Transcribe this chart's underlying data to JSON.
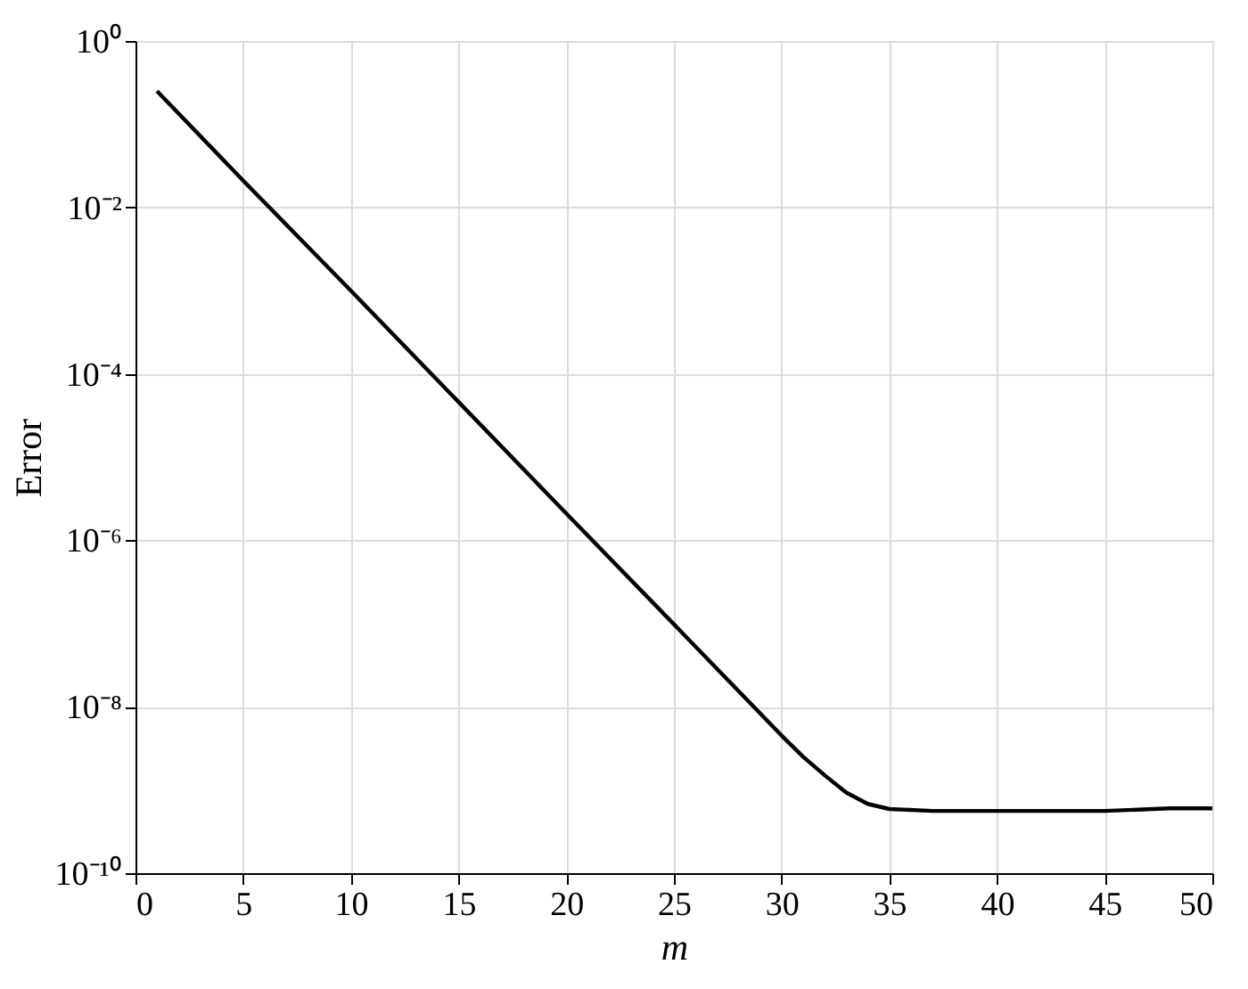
{
  "chart_data": {
    "type": "line",
    "xlabel": "m",
    "ylabel": "Error",
    "log": "y",
    "grid": true,
    "marker": "none",
    "line_style": "solid",
    "xlim": [
      0,
      50
    ],
    "xticks": [
      0,
      5,
      10,
      15,
      20,
      25,
      30,
      35,
      40,
      45,
      50
    ],
    "ylim": [
      1e-10,
      1
    ],
    "yticks": [
      {
        "value": 1e-10,
        "label": "10⁻¹⁰"
      },
      {
        "value": 1e-08,
        "label": "10⁻⁸"
      },
      {
        "value": 1e-06,
        "label": "10⁻⁶"
      },
      {
        "value": 0.0001,
        "label": "10⁻⁴"
      },
      {
        "value": 0.01,
        "label": "10⁻²"
      },
      {
        "value": 1,
        "label": "10⁰"
      }
    ],
    "series": [
      {
        "color": "#000000",
        "x": [
          1,
          5,
          10,
          15,
          20,
          25,
          30,
          31,
          32,
          33,
          34,
          35,
          37,
          45,
          48,
          50
        ],
        "values": [
          0.25,
          0.021,
          0.001,
          4.6e-05,
          2.1e-06,
          9.8e-08,
          4.5e-09,
          2.5e-09,
          1.5e-09,
          9.3e-10,
          6.8e-10,
          5.9e-10,
          5.6e-10,
          5.6e-10,
          6e-10,
          6e-10
        ]
      }
    ]
  }
}
